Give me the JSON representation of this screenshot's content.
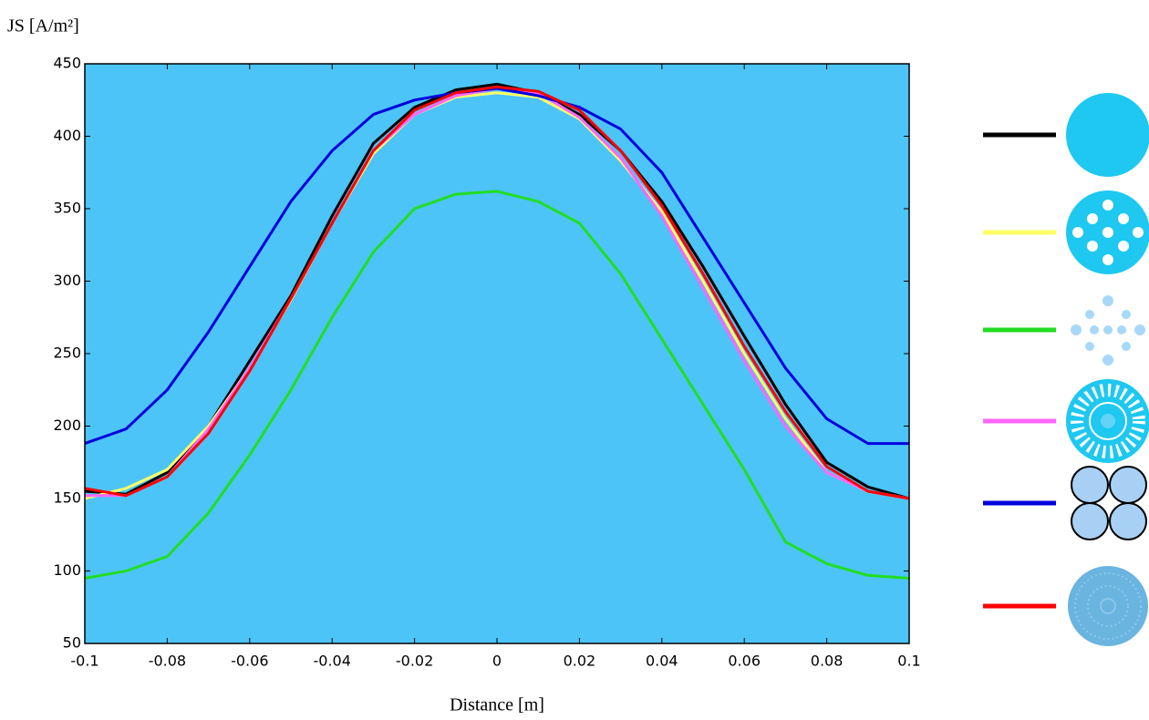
{
  "chart_data": {
    "type": "line",
    "y_label": "JS [A/m²]",
    "x_label": "Distance [m]",
    "x": [
      -0.1,
      -0.09,
      -0.08,
      -0.07,
      -0.06,
      -0.05,
      -0.04,
      -0.03,
      -0.02,
      -0.01,
      0,
      0.01,
      0.02,
      0.03,
      0.04,
      0.05,
      0.06,
      0.07,
      0.08,
      0.09,
      0.1
    ],
    "series": [
      {
        "color": "#000000",
        "values": [
          155,
          153,
          168,
          200,
          245,
          290,
          345,
          395,
          420,
          432,
          436,
          430,
          415,
          390,
          355,
          310,
          262,
          215,
          175,
          158,
          150
        ]
      },
      {
        "color": "#ffff66",
        "values": [
          150,
          157,
          170,
          200,
          240,
          287,
          340,
          388,
          415,
          427,
          430,
          427,
          412,
          383,
          348,
          300,
          250,
          205,
          168,
          155,
          150
        ]
      },
      {
        "color": "#22dd22",
        "values": [
          95,
          100,
          110,
          140,
          180,
          225,
          275,
          320,
          350,
          360,
          362,
          355,
          340,
          305,
          260,
          215,
          170,
          120,
          105,
          97,
          95
        ]
      },
      {
        "color": "#ff66ff",
        "values": [
          152,
          152,
          165,
          198,
          240,
          288,
          340,
          390,
          415,
          428,
          433,
          430,
          413,
          385,
          345,
          295,
          245,
          200,
          168,
          155,
          150
        ]
      },
      {
        "color": "#0000dd",
        "values": [
          188,
          198,
          225,
          265,
          310,
          355,
          390,
          415,
          425,
          430,
          433,
          428,
          420,
          405,
          375,
          330,
          285,
          240,
          205,
          188,
          188
        ]
      },
      {
        "color": "#ff0000",
        "values": [
          157,
          152,
          165,
          195,
          238,
          288,
          340,
          390,
          418,
          430,
          434,
          431,
          418,
          390,
          352,
          305,
          255,
          210,
          172,
          155,
          150
        ]
      }
    ],
    "xlim": [
      -0.1,
      0.1
    ],
    "ylim": [
      50,
      450
    ],
    "xticks": [
      -0.1,
      -0.08,
      -0.06,
      -0.04,
      -0.02,
      0,
      0.02,
      0.04,
      0.06,
      0.08,
      0.1
    ],
    "yticks": [
      50,
      100,
      150,
      200,
      250,
      300,
      350,
      400,
      450
    ],
    "grid": false,
    "plot_background": "#4cc4f8",
    "legend": "right"
  }
}
